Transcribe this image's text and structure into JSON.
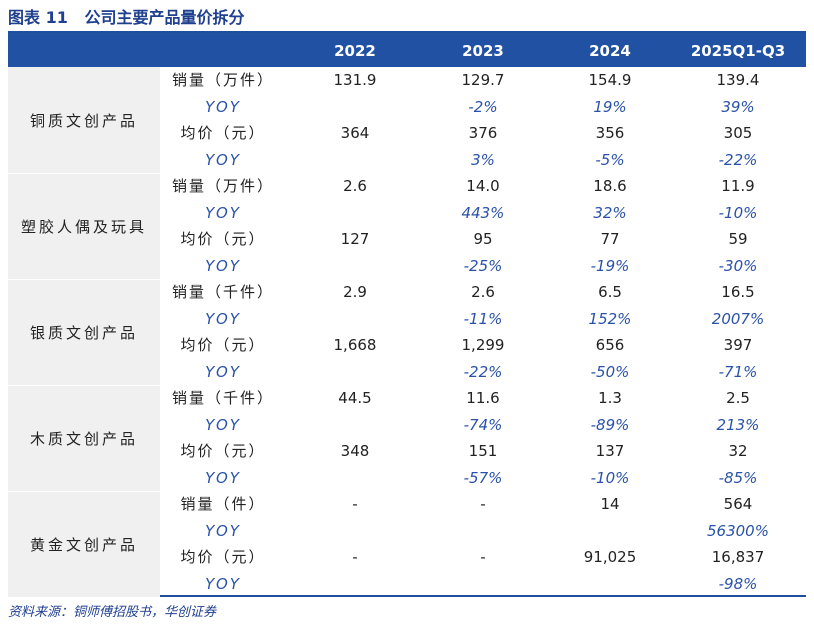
{
  "title": "图表 11   公司主要产品量价拆分",
  "table": {
    "years": [
      "2022",
      "2023",
      "2024",
      "2025Q1-Q3"
    ],
    "groups": [
      {
        "product": "铜质文创产品",
        "rows": [
          {
            "label": "销量（万件）",
            "cells": [
              "131.9",
              "129.7",
              "154.9",
              "139.4"
            ]
          },
          {
            "label": "YOY",
            "cells": [
              null,
              "-2%",
              "19%",
              "39%"
            ]
          },
          {
            "label": "均价（元）",
            "cells": [
              "364",
              "376",
              "356",
              "305"
            ]
          },
          {
            "label": "YOY",
            "cells": [
              null,
              "3%",
              "-5%",
              "-22%"
            ]
          }
        ]
      },
      {
        "product": "塑胶人偶及玩具",
        "rows": [
          {
            "label": "销量（万件）",
            "cells": [
              "2.6",
              "14.0",
              "18.6",
              "11.9"
            ]
          },
          {
            "label": "YOY",
            "cells": [
              null,
              "443%",
              "32%",
              "-10%"
            ]
          },
          {
            "label": "均价（元）",
            "cells": [
              "127",
              "95",
              "77",
              "59"
            ]
          },
          {
            "label": "YOY",
            "cells": [
              null,
              "-25%",
              "-19%",
              "-30%"
            ]
          }
        ]
      },
      {
        "product": "银质文创产品",
        "rows": [
          {
            "label": "销量（千件）",
            "cells": [
              "2.9",
              "2.6",
              "6.5",
              "16.5"
            ]
          },
          {
            "label": "YOY",
            "cells": [
              null,
              "-11%",
              "152%",
              "2007%"
            ]
          },
          {
            "label": "均价（元）",
            "cells": [
              "1,668",
              "1,299",
              "656",
              "397"
            ]
          },
          {
            "label": "YOY",
            "cells": [
              null,
              "-22%",
              "-50%",
              "-71%"
            ]
          }
        ]
      },
      {
        "product": "木质文创产品",
        "rows": [
          {
            "label": "销量（千件）",
            "cells": [
              "44.5",
              "11.6",
              "1.3",
              "2.5"
            ]
          },
          {
            "label": "YOY",
            "cells": [
              null,
              "-74%",
              "-89%",
              "213%"
            ]
          },
          {
            "label": "均价（元）",
            "cells": [
              "348",
              "151",
              "137",
              "32"
            ]
          },
          {
            "label": "YOY",
            "cells": [
              null,
              "-57%",
              "-10%",
              "-85%"
            ]
          }
        ]
      },
      {
        "product": "黄金文创产品",
        "rows": [
          {
            "label": "销量（件）",
            "cells": [
              "-",
              "-",
              "14",
              "564"
            ]
          },
          {
            "label": "YOY",
            "cells": [
              null,
              null,
              null,
              "56300%"
            ]
          },
          {
            "label": "均价（元）",
            "cells": [
              "-",
              "-",
              "91,025",
              "16,837"
            ]
          },
          {
            "label": "YOY",
            "cells": [
              null,
              null,
              null,
              "-98%"
            ]
          }
        ]
      }
    ]
  },
  "source": "资料来源：铜师傅招股书，华创证券"
}
